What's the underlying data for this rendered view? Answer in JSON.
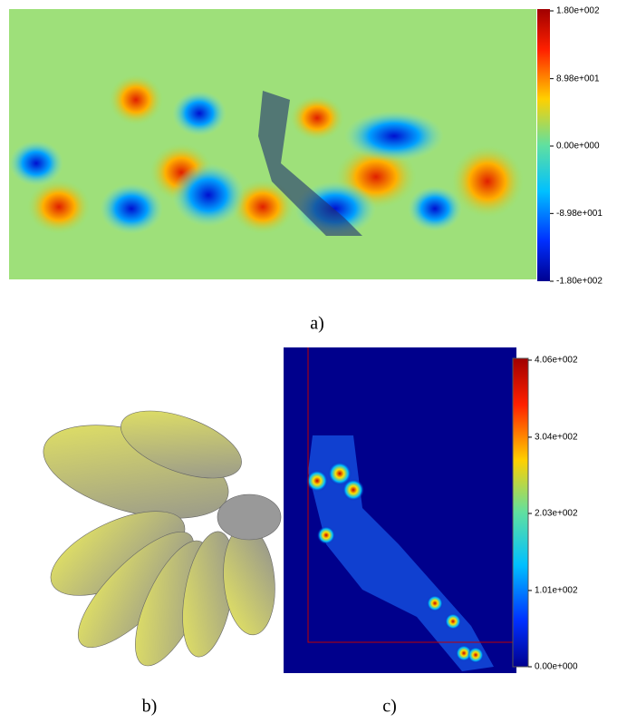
{
  "panels": [
    {
      "label": "a)",
      "colorbar": {
        "range": [
          -180,
          180
        ],
        "ticks": [
          {
            "value": 180,
            "label": "1.80e+002"
          },
          {
            "value": 89.8,
            "label": "8.98e+001"
          },
          {
            "value": 0,
            "label": "0.00e+000"
          },
          {
            "value": -89.8,
            "label": "-8.98e+001"
          },
          {
            "value": -180,
            "label": "-1.80e+002"
          }
        ]
      }
    },
    {
      "label": "b)"
    },
    {
      "label": "c)",
      "colorbar": {
        "range": [
          0,
          406
        ],
        "ticks": [
          {
            "value": 406,
            "label": "4.06e+002"
          },
          {
            "value": 304,
            "label": "3.04e+002"
          },
          {
            "value": 203,
            "label": "2.03e+002"
          },
          {
            "value": 101,
            "label": "1.01e+002"
          },
          {
            "value": 0,
            "label": "0.00e+000"
          }
        ]
      }
    }
  ]
}
